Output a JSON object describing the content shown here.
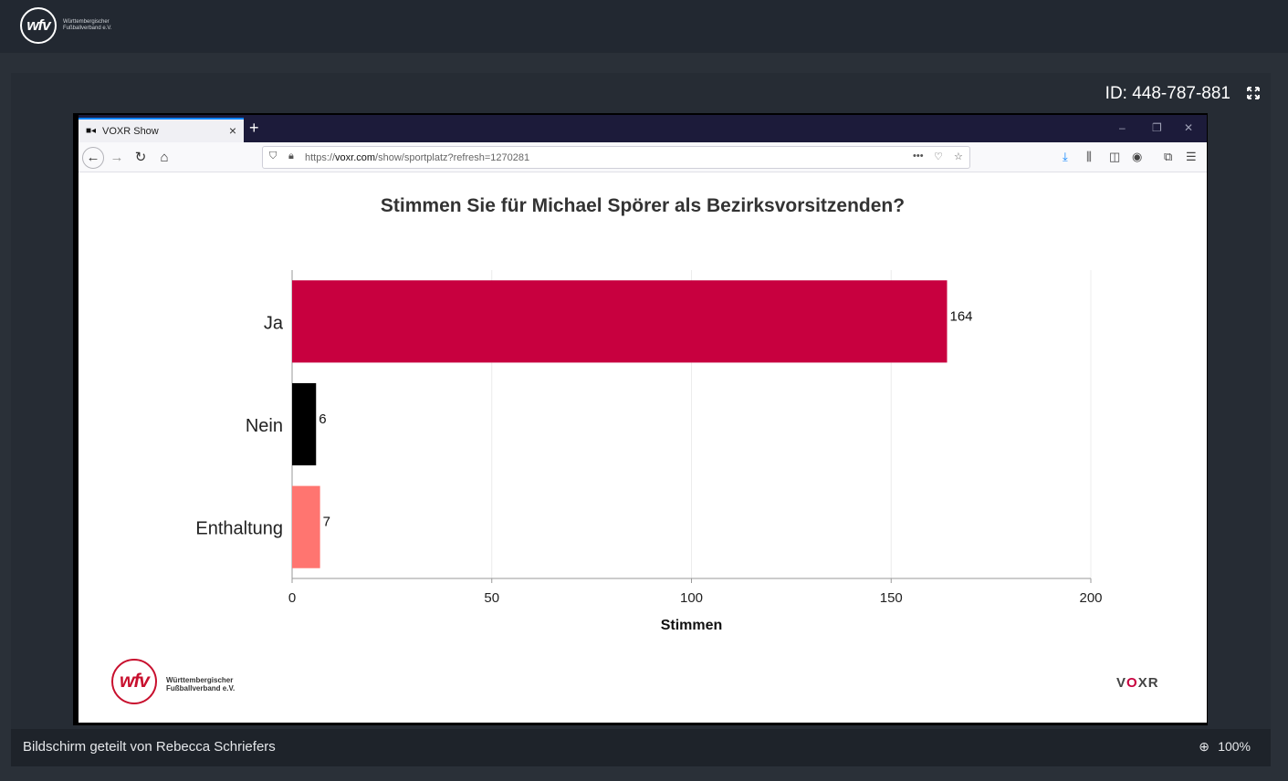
{
  "header": {
    "logo_text": "wfv",
    "org_line1": "Württembergischer",
    "org_line2": "Fußballverband e.V."
  },
  "meeting": {
    "id_label": "ID: 448-787-881"
  },
  "browser": {
    "tab_title": "VOXR Show",
    "tab_close": "×",
    "new_tab": "+",
    "url_prefix": "https://",
    "url_domain": "voxr.com",
    "url_path": "/show/sportplatz?refresh=1270281",
    "window_controls": {
      "minimize": "–",
      "restore": "❐",
      "close": "✕"
    }
  },
  "chart_data": {
    "type": "bar",
    "orientation": "horizontal",
    "title": "Stimmen Sie für Michael Spörer als Bezirksvorsitzenden?",
    "xlabel": "Stimmen",
    "ylabel": "",
    "xlim": [
      0,
      200
    ],
    "xticks": [
      "0",
      "50",
      "100",
      "150",
      "200"
    ],
    "categories": [
      "Ja",
      "Nein",
      "Enthaltung"
    ],
    "values": [
      164,
      6,
      7
    ],
    "colors": [
      "#c8003f",
      "#000000",
      "#ff7570"
    ],
    "grid": true
  },
  "footer": {
    "logo_text": "wfv",
    "org_line1": "Württembergischer",
    "org_line2": "Fußballverband e.V.",
    "brand_prefix": "V",
    "brand_o": "O",
    "brand_suffix": "XR"
  },
  "statusbar": {
    "shared_by": "Bildschirm geteilt von Rebecca Schriefers",
    "zoom": "100%"
  }
}
